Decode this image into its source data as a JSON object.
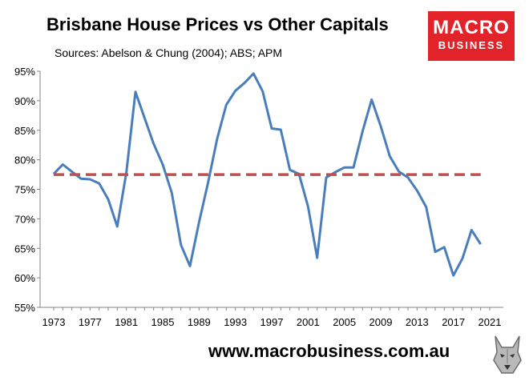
{
  "header": {
    "title": "Brisbane House Prices vs Other Capitals",
    "subtitle": "Sources: Abelson & Chung (2004); ABS; APM"
  },
  "logo": {
    "line1": "MACRO",
    "line2": "BUSINESS",
    "color": "#e2232a"
  },
  "footer": {
    "url": "www.macrobusiness.com.au"
  },
  "chart_data": {
    "type": "line",
    "ylim": [
      0.55,
      0.95
    ],
    "xlim": [
      1973,
      2021
    ],
    "y_ticks": [
      0.55,
      0.6,
      0.65,
      0.7,
      0.75,
      0.8,
      0.85,
      0.9,
      0.95
    ],
    "y_tick_labels": [
      "55%",
      "60%",
      "65%",
      "70%",
      "75%",
      "80%",
      "85%",
      "90%",
      "95%"
    ],
    "x_ticks": [
      1973,
      1977,
      1981,
      1985,
      1989,
      1993,
      1997,
      2001,
      2005,
      2009,
      2013,
      2017,
      2021
    ],
    "x_tick_labels": [
      "1973",
      "1977",
      "1981",
      "1985",
      "1989",
      "1993",
      "1997",
      "2001",
      "2005",
      "2009",
      "2013",
      "2017",
      "2021"
    ],
    "grid": false,
    "legend": "none",
    "series": [
      {
        "style": "solid",
        "color": "#4a7ebb",
        "x": [
          1973,
          1974,
          1975,
          1976,
          1977,
          1978,
          1979,
          1980,
          1981,
          1982,
          1983,
          1984,
          1985,
          1986,
          1987,
          1988,
          1989,
          1990,
          1991,
          1992,
          1993,
          1994,
          1995,
          1996,
          1997,
          1998,
          1999,
          2000,
          2001,
          2002,
          2003,
          2004,
          2005,
          2006,
          2007,
          2008,
          2009,
          2010,
          2011,
          2012,
          2013,
          2014,
          2015,
          2016,
          2017,
          2018,
          2019,
          2020
        ],
        "y": [
          0.776,
          0.792,
          0.78,
          0.768,
          0.767,
          0.76,
          0.733,
          0.687,
          0.779,
          0.915,
          0.871,
          0.827,
          0.792,
          0.744,
          0.656,
          0.62,
          0.694,
          0.762,
          0.836,
          0.893,
          0.917,
          0.93,
          0.946,
          0.916,
          0.853,
          0.851,
          0.783,
          0.776,
          0.721,
          0.634,
          0.77,
          0.779,
          0.787,
          0.787,
          0.848,
          0.902,
          0.857,
          0.806,
          0.78,
          0.77,
          0.748,
          0.72,
          0.644,
          0.652,
          0.604,
          0.633,
          0.681,
          0.657
        ]
      },
      {
        "style": "dashed",
        "color": "#c0504d",
        "x": [
          1973,
          2020
        ],
        "y": [
          0.775,
          0.775
        ]
      }
    ]
  }
}
